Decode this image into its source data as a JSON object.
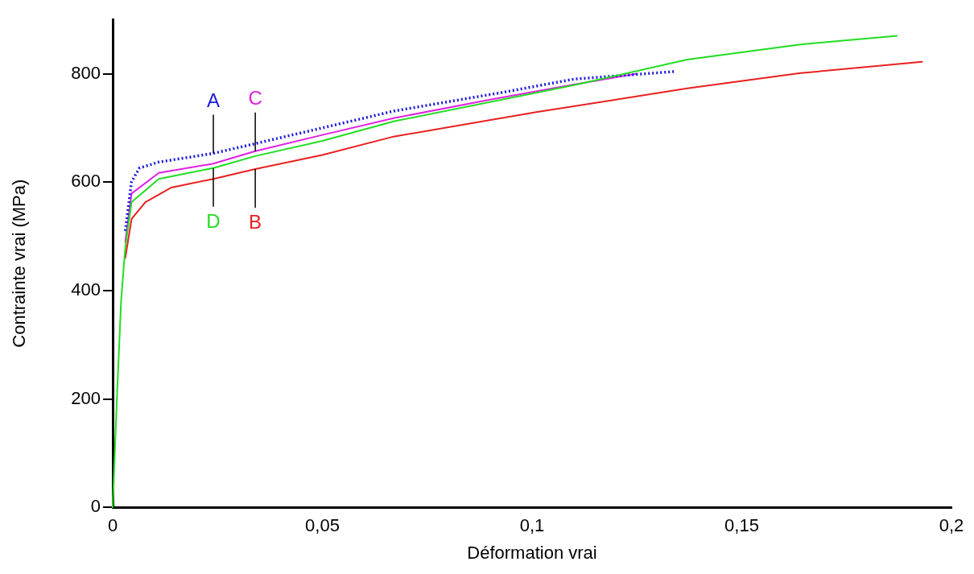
{
  "chart_data": {
    "type": "line",
    "xlabel": "Déformation vrai",
    "ylabel": "Contrainte vrai (MPa)",
    "xlim": [
      0,
      0.2
    ],
    "ylim": [
      0,
      900
    ],
    "xticks": [
      0,
      {
        "value": 0.05,
        "label": "0,05"
      },
      {
        "value": 0.1,
        "label": "0,1"
      },
      {
        "value": 0.15,
        "label": "0,15"
      },
      {
        "value": 0.2,
        "label": "0,2"
      }
    ],
    "yticks": [
      0,
      200,
      400,
      600,
      800
    ],
    "grid": false,
    "legend": false,
    "marker": "none",
    "series": [
      {
        "name": "A",
        "color": "#1a1adc",
        "line_style": "dotted",
        "x": [
          0.003,
          0.0045,
          0.0064,
          0.011,
          0.024,
          0.034,
          0.05,
          0.067,
          0.0926,
          0.11,
          0.134
        ],
        "values": [
          510,
          601,
          626,
          637,
          653,
          671,
          700,
          731,
          765,
          790,
          804
        ]
      },
      {
        "name": "C",
        "color": "#e020e0",
        "line_style": "solid",
        "x": [
          0.003,
          0.0045,
          0.011,
          0.024,
          0.034,
          0.05,
          0.067,
          0.09,
          0.11,
          0.125
        ],
        "values": [
          490,
          579,
          617,
          634,
          657,
          687,
          718,
          752,
          780,
          800
        ]
      },
      {
        "name": "D",
        "color": "#22dd22",
        "line_style": "solid",
        "x": [
          0,
          0.001,
          0.002,
          0.003,
          0.0045,
          0.011,
          0.024,
          0.034,
          0.05,
          0.067,
          0.11,
          0.137,
          0.164,
          0.187
        ],
        "values": [
          0,
          200,
          380,
          480,
          563,
          606,
          626,
          648,
          676,
          712,
          779,
          826,
          854,
          870
        ]
      },
      {
        "name": "B",
        "color": "#e82020",
        "line_style": "solid",
        "x": [
          0.003,
          0.0045,
          0.0078,
          0.014,
          0.024,
          0.034,
          0.05,
          0.067,
          0.101,
          0.137,
          0.164,
          0.193
        ],
        "values": [
          460,
          532,
          563,
          590,
          606,
          624,
          650,
          684,
          729,
          773,
          801,
          822
        ]
      }
    ]
  }
}
